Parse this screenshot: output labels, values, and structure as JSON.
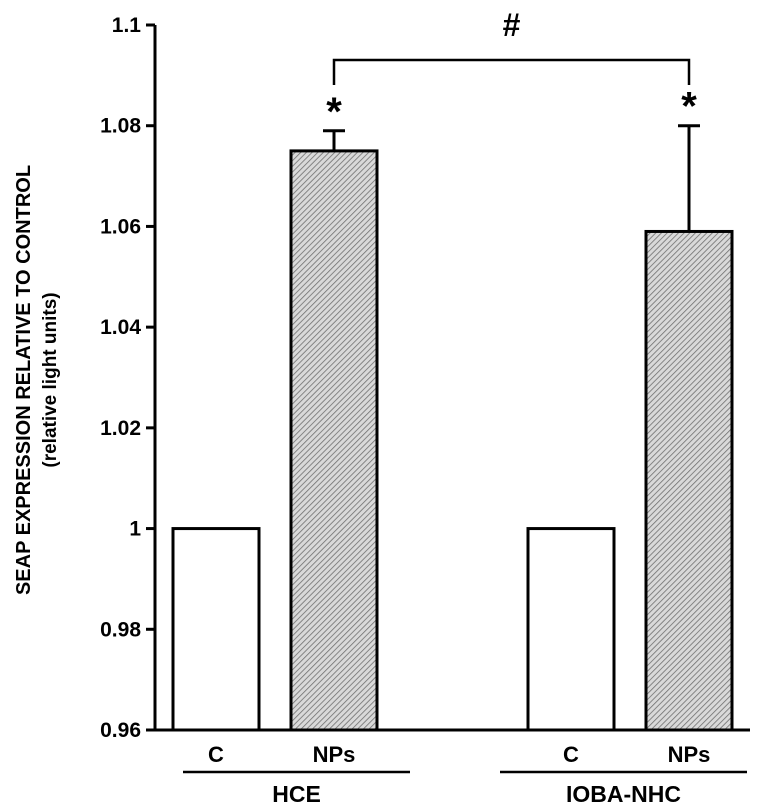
{
  "chart_data": {
    "type": "bar",
    "ylabel": "SEAP EXPRESSION RELATIVE TO CONTROL",
    "ylabel_sub": "(relative light units)",
    "ylim": [
      0.96,
      1.1
    ],
    "yticks": [
      0.96,
      0.98,
      1,
      1.02,
      1.04,
      1.06,
      1.08,
      1.1
    ],
    "ytick_labels": [
      "0.96",
      "0.98",
      "1",
      "1.02",
      "1.04",
      "1.06",
      "1.08",
      "1.1"
    ],
    "bars": [
      {
        "category": "C",
        "group": "HCE",
        "value": 1.0,
        "error": 0,
        "pattern": "white",
        "significance": ""
      },
      {
        "category": "NPs",
        "group": "HCE",
        "value": 1.075,
        "error": 0.004,
        "pattern": "hatched-gray",
        "significance": "*"
      },
      {
        "category": "C",
        "group": "IOBA-NHC",
        "value": 1.0,
        "error": 0,
        "pattern": "white",
        "significance": ""
      },
      {
        "category": "NPs",
        "group": "IOBA-NHC",
        "value": 1.059,
        "error": 0.021,
        "pattern": "hatched-gray",
        "significance": "*"
      }
    ],
    "groups": [
      "HCE",
      "IOBA-NHC"
    ],
    "bracket": {
      "from": 1,
      "to": 3,
      "label": "#"
    },
    "grid": false,
    "legend": "none",
    "colors": {
      "bar_fill_control": "#ffffff",
      "bar_hatch": "#888888",
      "axis": "#000000"
    }
  }
}
